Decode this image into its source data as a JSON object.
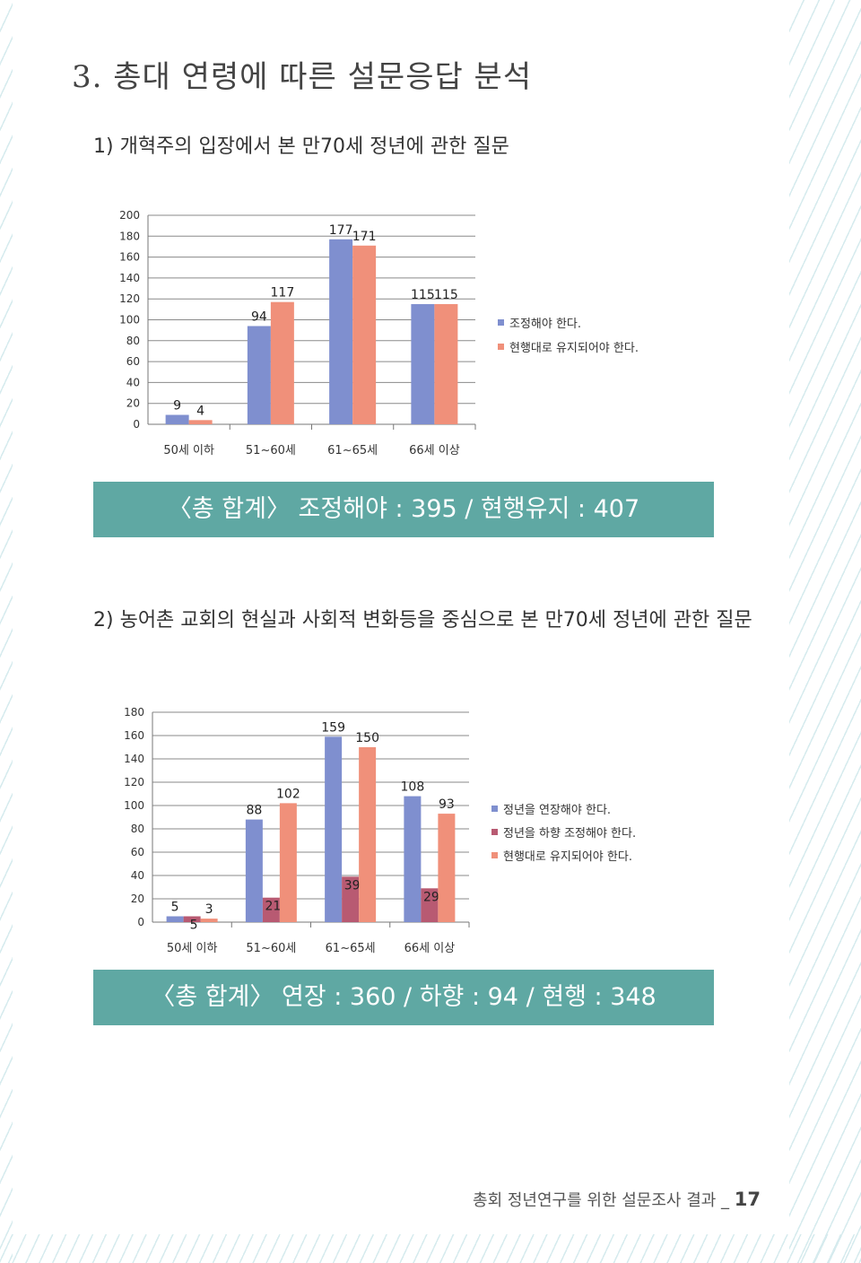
{
  "section_title": "3. 총대 연령에 따른 설문응답 분석",
  "questions": {
    "q1": "1) 개혁주의 입장에서 본 만70세 정년에 관한 질문",
    "q2": "2) 농어촌 교회의 현실과 사회적 변화등을 중심으로 본 만70세 정년에 관한 질문"
  },
  "banners": {
    "b1": "〈총 합계〉 조정해야 : 395 / 현행유지 : 407",
    "b2": "〈총 합계〉 연장 : 360 / 하향 : 94 / 현행 : 348"
  },
  "footer": {
    "text": "총회 정년연구를 위한 설문조사 결과 _ ",
    "page_number": "17"
  },
  "chart_data": [
    {
      "type": "bar",
      "categories": [
        "50세 이하",
        "51~60세",
        "61~65세",
        "66세 이상"
      ],
      "series": [
        {
          "name": "조정해야 한다.",
          "values": [
            9,
            94,
            177,
            115
          ],
          "color": "#7f8fcf"
        },
        {
          "name": "현행대로 유지되어야 한다.",
          "values": [
            4,
            117,
            171,
            115
          ],
          "color": "#f0907a"
        }
      ],
      "ylim": [
        0,
        200
      ],
      "yticks": [
        0,
        20,
        40,
        60,
        80,
        100,
        120,
        140,
        160,
        180,
        200
      ],
      "grid": true,
      "legend": "right"
    },
    {
      "type": "bar",
      "categories": [
        "50세 이하",
        "51~60세",
        "61~65세",
        "66세 이상"
      ],
      "series": [
        {
          "name": "정년을 연장해야 한다.",
          "values": [
            5,
            88,
            159,
            108
          ],
          "color": "#7f8fcf"
        },
        {
          "name": "정년을 하향 조정해야 한다.",
          "values": [
            5,
            21,
            39,
            29
          ],
          "color": "#b85a72"
        },
        {
          "name": "현행대로 유지되어야 한다.",
          "values": [
            3,
            102,
            150,
            93
          ],
          "color": "#f0907a"
        }
      ],
      "ylim": [
        0,
        180
      ],
      "yticks": [
        0,
        20,
        40,
        60,
        80,
        100,
        120,
        140,
        160,
        180
      ],
      "grid": true,
      "legend": "right"
    }
  ]
}
